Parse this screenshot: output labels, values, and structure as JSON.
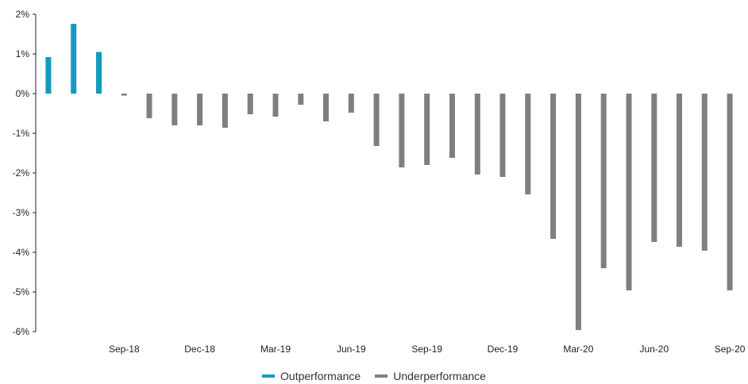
{
  "chart_data": {
    "type": "bar",
    "x": [
      "Jun-18",
      "Jul-18",
      "Aug-18",
      "Sep-18",
      "Oct-18",
      "Nov-18",
      "Dec-18",
      "Jan-19",
      "Feb-19",
      "Mar-19",
      "Apr-19",
      "May-19",
      "Jun-19",
      "Jul-19",
      "Aug-19",
      "Sep-19",
      "Oct-19",
      "Nov-19",
      "Dec-19",
      "Jan-20",
      "Feb-20",
      "Mar-20",
      "Apr-20",
      "May-20",
      "Jun-20",
      "Jul-20",
      "Aug-20",
      "Sep-20"
    ],
    "x_tick_labels": [
      "Sep-18",
      "Dec-18",
      "Mar-19",
      "Jun-19",
      "Sep-19",
      "Dec-19",
      "Mar-20",
      "Jun-20",
      "Sep-20"
    ],
    "values": [
      0.92,
      1.76,
      1.05,
      -0.05,
      -0.62,
      -0.8,
      -0.8,
      -0.86,
      -0.52,
      -0.58,
      -0.28,
      -0.7,
      -0.48,
      -1.32,
      -1.86,
      -1.8,
      -1.62,
      -2.04,
      -2.1,
      -2.54,
      -3.66,
      -5.96,
      -4.4,
      -4.96,
      -3.74,
      -3.86,
      -3.96,
      -4.96
    ],
    "ylim": [
      -6,
      2
    ],
    "y_ticks": [
      2,
      1,
      0,
      -1,
      -2,
      -3,
      -4,
      -5,
      -6
    ],
    "y_tick_labels": [
      "2%",
      "1%",
      "0%",
      "-1%",
      "-2%",
      "-3%",
      "-4%",
      "-5%",
      "-6%"
    ],
    "grid": false,
    "legend_position": "bottom",
    "series": [
      {
        "name": "Outperformance",
        "color": "#139bbf"
      },
      {
        "name": "Underperformance",
        "color": "#7f7f7f"
      }
    ]
  }
}
